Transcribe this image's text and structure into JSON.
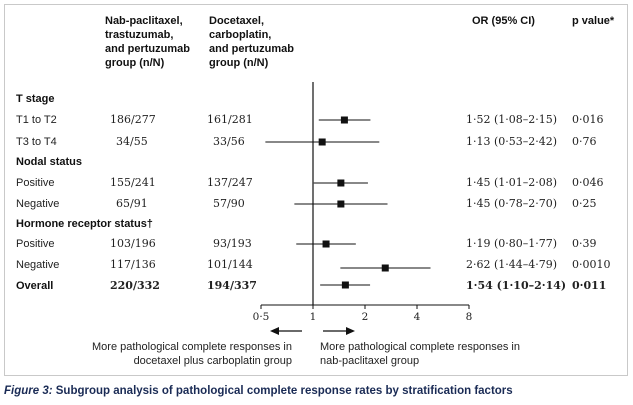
{
  "headers": {
    "group1": "Nab-paclitaxel,\ntrastuzumab,\nand pertuzumab\ngroup (n/N)",
    "group2": "Docetaxel,\ncarboplatin,\nand pertuzumab\ngroup (n/N)",
    "or": "OR (95% CI)",
    "p": "p value*"
  },
  "sections": {
    "t_stage": "T stage",
    "nodal": "Nodal status",
    "hormone": "Hormone receptor status†"
  },
  "rows": [
    {
      "label": "T1 to T2",
      "g1": "186/277",
      "g2": "161/281",
      "or_text": "1·52 (1·08–2·15)",
      "p": "0·016"
    },
    {
      "label": "T3 to T4",
      "g1": "34/55",
      "g2": "33/56",
      "or_text": "1·13 (0·53–2·42)",
      "p": "0·76"
    },
    {
      "label": "Positive",
      "g1": "155/241",
      "g2": "137/247",
      "or_text": "1·45 (1·01–2·08)",
      "p": "0·046"
    },
    {
      "label": "Negative",
      "g1": "65/91",
      "g2": "57/90",
      "or_text": "1·45 (0·78–2·70)",
      "p": "0·25"
    },
    {
      "label": "Positive",
      "g1": "103/196",
      "g2": "93/193",
      "or_text": "1·19 (0·80–1·77)",
      "p": "0·39"
    },
    {
      "label": "Negative",
      "g1": "117/136",
      "g2": "101/144",
      "or_text": "2·62 (1·44–4·79)",
      "p": "0·0010"
    },
    {
      "label": "Overall",
      "g1": "220/332",
      "g2": "194/337",
      "or_text": "1·54 (1·10–2·14)",
      "p": "0·011"
    }
  ],
  "axis_notes": {
    "left": "More pathological complete responses in\ndocetaxel plus carboplatin group",
    "right": "More pathological complete responses in\nnab-paclitaxel group"
  },
  "caption": {
    "figure": "Figure 3:",
    "text": "Subgroup analysis of pathological complete response rates by stratification factors"
  },
  "chart_data": {
    "type": "forest",
    "x_scale": "log",
    "xlim": [
      0.5,
      8
    ],
    "reference_line": 1,
    "ticks": [
      0.5,
      1,
      2,
      4,
      8
    ],
    "tick_labels": [
      "0·5",
      "1",
      "2",
      "4",
      "8"
    ],
    "points": [
      {
        "or": 1.52,
        "lo": 1.08,
        "hi": 2.15
      },
      {
        "or": 1.13,
        "lo": 0.53,
        "hi": 2.42
      },
      {
        "or": 1.45,
        "lo": 1.01,
        "hi": 2.08
      },
      {
        "or": 1.45,
        "lo": 0.78,
        "hi": 2.7
      },
      {
        "or": 1.19,
        "lo": 0.8,
        "hi": 1.77
      },
      {
        "or": 2.62,
        "lo": 1.44,
        "hi": 4.79
      },
      {
        "or": 1.54,
        "lo": 1.1,
        "hi": 2.14
      }
    ]
  }
}
